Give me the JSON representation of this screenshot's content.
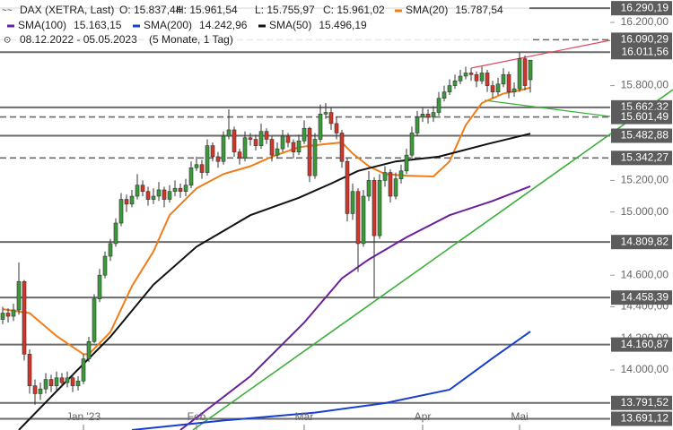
{
  "chart_data": {
    "type": "candlestick",
    "title": "DAX (XETRA, Last)",
    "ohlc_labels": [
      "O: 15.837,44",
      "H: 15.961,54",
      "L: 15.755,97",
      "C: 15.961,02"
    ],
    "period": "08.12.2022 - 05.05.2023",
    "period_note": "(5 Monate, 1 Tag)",
    "up_color": "#3a9a3a",
    "down_color": "#d0362a",
    "xlim": [
      -0.5,
      112.83
    ],
    "ylim": [
      13620,
      16342
    ],
    "xticks": [
      {
        "value": 15,
        "label": "Jan '23"
      },
      {
        "value": 36,
        "label": "Feb"
      },
      {
        "value": 56,
        "label": "Mär"
      },
      {
        "value": 78,
        "label": "Apr"
      },
      {
        "value": 96,
        "label": "Mai"
      }
    ],
    "yticks": [
      {
        "value": 16200,
        "label": "16.200,00"
      },
      {
        "value": 15800,
        "label": "15.800,00"
      },
      {
        "value": 15200,
        "label": "15.200,00"
      },
      {
        "value": 15000,
        "label": "15.000,00"
      },
      {
        "value": 14600,
        "label": "14.600,00"
      },
      {
        "value": 14400,
        "label": "14.400,00"
      },
      {
        "value": 14200,
        "label": "14.200,00"
      },
      {
        "value": 14000,
        "label": "14.000,00"
      }
    ],
    "levels": [
      {
        "value": 16290.19,
        "label": "16.290,19",
        "style": "solid"
      },
      {
        "value": 16090.29,
        "label": "16.090,29",
        "style": "dashed"
      },
      {
        "value": 16011.56,
        "label": "16.011,56",
        "style": "solid"
      },
      {
        "value": 15662.32,
        "label": "15.662,32",
        "style": "solid"
      },
      {
        "value": 15601.49,
        "label": "15.601,49",
        "style": "dashed"
      },
      {
        "value": 15482.88,
        "label": "15.482,88",
        "style": "solid"
      },
      {
        "value": 15342.27,
        "label": "15.342,27",
        "style": "dashed"
      },
      {
        "value": 14809.82,
        "label": "14.809,82",
        "style": "solid"
      },
      {
        "value": 14458.39,
        "label": "14.458,39",
        "style": "solid"
      },
      {
        "value": 14160.87,
        "label": "14.160,87",
        "style": "solid"
      },
      {
        "value": 13791.52,
        "label": "13.791,52",
        "style": "solid"
      },
      {
        "value": 13691.12,
        "label": "13.691,12",
        "style": "solid"
      }
    ],
    "series": [
      {
        "name": "SMA(20)",
        "color": "#f07d1a",
        "value_label": "15.787,54",
        "x": [
          0,
          5,
          10,
          15,
          16,
          20,
          24,
          28,
          31,
          36,
          41,
          46,
          50,
          55,
          60,
          63,
          65,
          68,
          71,
          75,
          80,
          83,
          86,
          89,
          93,
          96,
          98
        ],
        "values": [
          14385,
          14360,
          14215,
          14100,
          14100,
          14240,
          14530,
          14750,
          14980,
          15150,
          15240,
          15290,
          15350,
          15410,
          15430,
          15440,
          15370,
          15290,
          15240,
          15230,
          15225,
          15320,
          15550,
          15690,
          15750,
          15770,
          15787.54
        ]
      },
      {
        "name": "SMA(100)",
        "color": "#6a1fa0",
        "value_label": "15.163,15",
        "x": [
          33,
          46,
          56,
          63,
          68,
          75,
          83,
          91,
          98
        ],
        "values": [
          13620,
          13960,
          14300,
          14580,
          14700,
          14840,
          14980,
          15070,
          15163.15
        ]
      },
      {
        "name": "SMA(200)",
        "color": "#1a3fd0",
        "value_label": "14.242,96",
        "x": [
          24,
          41,
          58,
          71,
          83,
          91,
          98
        ],
        "values": [
          13620,
          13680,
          13730,
          13790,
          13875,
          14075,
          14242.96
        ]
      },
      {
        "name": "SMA(50)",
        "color": "#111111",
        "value_label": "15.496,19",
        "x": [
          3,
          11,
          20,
          28,
          36,
          46,
          55,
          61,
          66,
          73,
          81,
          90,
          98
        ],
        "values": [
          13620,
          13900,
          14210,
          14540,
          14780,
          14980,
          15090,
          15180,
          15260,
          15320,
          15350,
          15430,
          15496.19
        ]
      }
    ],
    "ohlc": [
      [
        14320,
        14400,
        14290,
        14360
      ],
      [
        14360,
        14390,
        14300,
        14340
      ],
      [
        14340,
        14420,
        14310,
        14380
      ],
      [
        14380,
        14680,
        14350,
        14560
      ],
      [
        14560,
        14570,
        14060,
        14100
      ],
      [
        14100,
        14130,
        13850,
        13900
      ],
      [
        13900,
        13940,
        13780,
        13850
      ],
      [
        13850,
        13920,
        13810,
        13880
      ],
      [
        13880,
        13980,
        13850,
        13940
      ],
      [
        13940,
        13970,
        13860,
        13900
      ],
      [
        13900,
        13990,
        13870,
        13950
      ],
      [
        13950,
        13980,
        13890,
        13920
      ],
      [
        13920,
        13990,
        13890,
        13950
      ],
      [
        13950,
        13970,
        13860,
        13900
      ],
      [
        13900,
        13960,
        13870,
        13930
      ],
      [
        13930,
        14100,
        13910,
        14070
      ],
      [
        14070,
        14210,
        14050,
        14180
      ],
      [
        14180,
        14480,
        14170,
        14450
      ],
      [
        14450,
        14640,
        14430,
        14600
      ],
      [
        14600,
        14750,
        14580,
        14720
      ],
      [
        14720,
        14830,
        14690,
        14800
      ],
      [
        14800,
        14960,
        14780,
        14930
      ],
      [
        14930,
        15120,
        14910,
        15080
      ],
      [
        15080,
        15110,
        15000,
        15050
      ],
      [
        15050,
        15140,
        15030,
        15100
      ],
      [
        15100,
        15240,
        15080,
        15170
      ],
      [
        15170,
        15200,
        15100,
        15130
      ],
      [
        15130,
        15160,
        15040,
        15080
      ],
      [
        15080,
        15150,
        15050,
        15100
      ],
      [
        15100,
        15190,
        15070,
        15140
      ],
      [
        15140,
        15160,
        15030,
        15080
      ],
      [
        15080,
        15170,
        15060,
        15130
      ],
      [
        15130,
        15200,
        15100,
        15150
      ],
      [
        15150,
        15180,
        15090,
        15130
      ],
      [
        15130,
        15210,
        15100,
        15170
      ],
      [
        15170,
        15320,
        15150,
        15280
      ],
      [
        15280,
        15350,
        15260,
        15300
      ],
      [
        15300,
        15330,
        15210,
        15250
      ],
      [
        15250,
        15460,
        15230,
        15420
      ],
      [
        15420,
        15440,
        15320,
        15350
      ],
      [
        15350,
        15380,
        15280,
        15320
      ],
      [
        15320,
        15510,
        15300,
        15480
      ],
      [
        15480,
        15650,
        15460,
        15520
      ],
      [
        15520,
        15540,
        15350,
        15380
      ],
      [
        15380,
        15400,
        15300,
        15340
      ],
      [
        15340,
        15510,
        15320,
        15470
      ],
      [
        15470,
        15500,
        15420,
        15460
      ],
      [
        15460,
        15490,
        15390,
        15420
      ],
      [
        15420,
        15560,
        15400,
        15510
      ],
      [
        15510,
        15530,
        15430,
        15460
      ],
      [
        15460,
        15480,
        15320,
        15360
      ],
      [
        15360,
        15440,
        15340,
        15400
      ],
      [
        15400,
        15520,
        15380,
        15480
      ],
      [
        15480,
        15500,
        15410,
        15440
      ],
      [
        15440,
        15460,
        15340,
        15380
      ],
      [
        15380,
        15490,
        15360,
        15450
      ],
      [
        15450,
        15580,
        15430,
        15530
      ],
      [
        15530,
        15540,
        15190,
        15230
      ],
      [
        15230,
        15500,
        15210,
        15460
      ],
      [
        15460,
        15680,
        15440,
        15620
      ],
      [
        15620,
        15690,
        15590,
        15630
      ],
      [
        15630,
        15660,
        15520,
        15560
      ],
      [
        15560,
        15600,
        15460,
        15500
      ],
      [
        15500,
        15520,
        15280,
        15320
      ],
      [
        15320,
        15340,
        14940,
        14990
      ],
      [
        14990,
        15180,
        14950,
        15130
      ],
      [
        15130,
        15150,
        14620,
        14800
      ],
      [
        14800,
        15140,
        14780,
        15100
      ],
      [
        15100,
        15260,
        15070,
        15200
      ],
      [
        15200,
        15220,
        14460,
        14850
      ],
      [
        14850,
        15240,
        14830,
        15200
      ],
      [
        15200,
        15290,
        15160,
        15250
      ],
      [
        15250,
        15270,
        15060,
        15100
      ],
      [
        15100,
        15250,
        15080,
        15210
      ],
      [
        15210,
        15300,
        15180,
        15260
      ],
      [
        15260,
        15400,
        15240,
        15360
      ],
      [
        15360,
        15540,
        15340,
        15500
      ],
      [
        15500,
        15640,
        15480,
        15600
      ],
      [
        15600,
        15660,
        15570,
        15620
      ],
      [
        15620,
        15650,
        15560,
        15600
      ],
      [
        15600,
        15670,
        15570,
        15630
      ],
      [
        15630,
        15760,
        15610,
        15720
      ],
      [
        15720,
        15800,
        15700,
        15760
      ],
      [
        15760,
        15840,
        15740,
        15800
      ],
      [
        15800,
        15870,
        15780,
        15830
      ],
      [
        15830,
        15900,
        15810,
        15860
      ],
      [
        15860,
        15920,
        15840,
        15880
      ],
      [
        15880,
        15910,
        15830,
        15870
      ],
      [
        15870,
        15890,
        15790,
        15830
      ],
      [
        15830,
        15920,
        15810,
        15880
      ],
      [
        15880,
        15900,
        15760,
        15800
      ],
      [
        15800,
        15830,
        15720,
        15760
      ],
      [
        15760,
        15850,
        15740,
        15810
      ],
      [
        15810,
        15910,
        15790,
        15870
      ],
      [
        15870,
        15890,
        15720,
        15760
      ],
      [
        15760,
        15820,
        15730,
        15780
      ],
      [
        15780,
        16010,
        15760,
        15970
      ],
      [
        15970,
        15990,
        15770,
        15800
      ],
      [
        15837.44,
        15961.54,
        15755.97,
        15961.02
      ]
    ]
  }
}
